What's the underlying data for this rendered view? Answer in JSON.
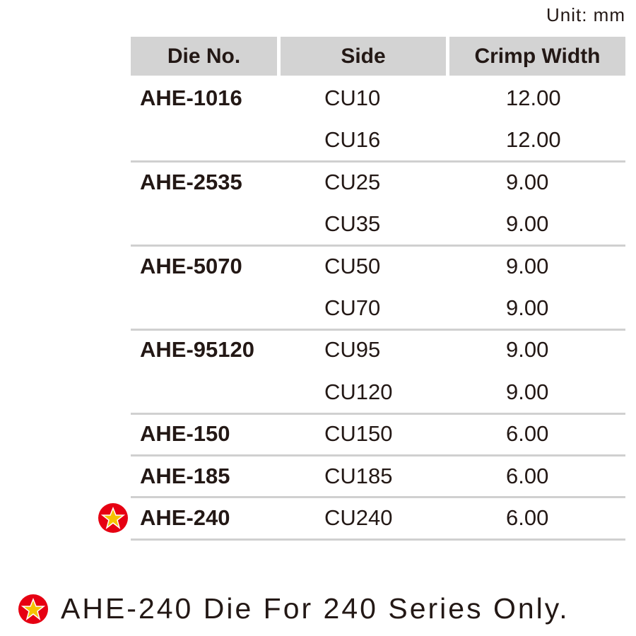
{
  "unit": "Unit: mm",
  "table": {
    "headers": [
      "Die No.",
      "Side",
      "Crimp Width"
    ],
    "groups": [
      {
        "die": "AHE-1016",
        "rows": [
          {
            "side": "CU10",
            "width": "12.00"
          },
          {
            "side": "CU16",
            "width": "12.00"
          }
        ]
      },
      {
        "die": "AHE-2535",
        "rows": [
          {
            "side": "CU25",
            "width": "9.00"
          },
          {
            "side": "CU35",
            "width": "9.00"
          }
        ]
      },
      {
        "die": "AHE-5070",
        "rows": [
          {
            "side": "CU50",
            "width": "9.00"
          },
          {
            "side": "CU70",
            "width": "9.00"
          }
        ]
      },
      {
        "die": "AHE-95120",
        "rows": [
          {
            "side": "CU95",
            "width": "9.00"
          },
          {
            "side": "CU120",
            "width": "9.00"
          }
        ]
      },
      {
        "die": "AHE-150",
        "rows": [
          {
            "side": "CU150",
            "width": "6.00"
          }
        ]
      },
      {
        "die": "AHE-185",
        "rows": [
          {
            "side": "CU185",
            "width": "6.00"
          }
        ]
      },
      {
        "die": "AHE-240",
        "rows": [
          {
            "side": "CU240",
            "width": "6.00"
          }
        ]
      }
    ]
  },
  "footnote": "AHE-240 Die For 240 Series Only."
}
